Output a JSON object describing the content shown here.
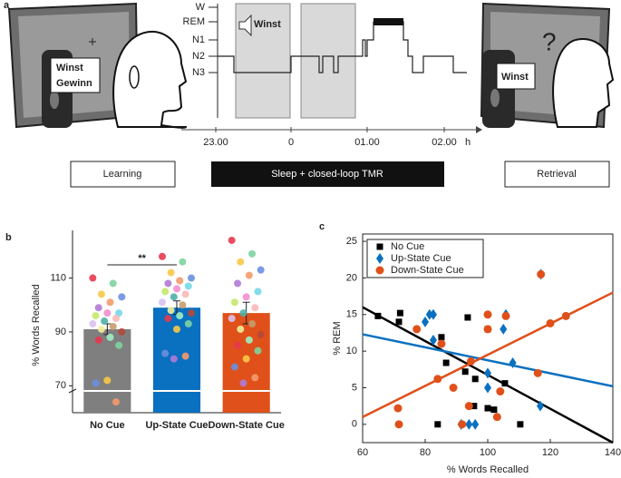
{
  "panel_a": {
    "label": "a",
    "stages": [
      "W",
      "REM",
      "N1",
      "N2",
      "N3"
    ],
    "times": [
      "23.00",
      "0",
      "01.00",
      "02.00"
    ],
    "unit": "h",
    "cue_word": "Winst",
    "learning_words": [
      "Winst",
      "Gewinn"
    ],
    "retrieval_word": "Winst",
    "question": "?",
    "boxes": [
      "Learning",
      "Sleep + closed-loop TMR",
      "Retrieval"
    ]
  },
  "chart_data": [
    {
      "type": "bar",
      "label": "b",
      "ylabel": "% Words Recalled",
      "annotation": "**",
      "categories": [
        "No Cue",
        "Up-State Cue",
        "Down-State Cue"
      ],
      "values": [
        91,
        99,
        97
      ],
      "errors": [
        2,
        2.5,
        4
      ],
      "colors": [
        "#7f7f7f",
        "#0a70c0",
        "#e0501a"
      ],
      "points": [
        [
          110,
          108,
          104,
          103,
          101,
          99,
          97,
          97,
          96,
          95,
          94,
          93,
          92,
          91,
          90,
          88,
          87,
          85,
          72,
          71,
          64
        ],
        [
          118,
          116,
          112,
          110,
          109,
          108,
          107,
          106,
          105,
          104,
          103,
          101,
          100,
          98,
          97,
          96,
          95,
          93,
          91,
          82,
          81,
          80
        ],
        [
          124,
          119,
          116,
          113,
          111,
          108,
          105,
          103,
          101,
          99,
          97,
          95,
          93,
          91,
          89,
          87,
          85,
          83,
          80,
          77,
          73,
          71
        ]
      ],
      "point_colors": [
        "#e8384f",
        "#7ed3a0",
        "#f7c948",
        "#6c8fe0",
        "#f59a6b",
        "#b07ad6",
        "#74d8e8",
        "#f28fd0",
        "#c5e86c",
        "#f9b8b8",
        "#4fb0a8",
        "#d9c2f0",
        "#c69c6d",
        "#f2ee9a",
        "#b5483a",
        "#9ff0c3"
      ],
      "ylim": [
        60,
        125
      ],
      "yticks": [
        70,
        90,
        110
      ]
    },
    {
      "type": "scatter",
      "label": "c",
      "xlabel": "% Words Recalled",
      "ylabel": "% REM",
      "xlim": [
        60,
        140
      ],
      "xticks": [
        60,
        80,
        100,
        120,
        140
      ],
      "ylim": [
        -2.5,
        26
      ],
      "yticks": [
        0,
        5,
        10,
        15,
        20,
        25
      ],
      "series": [
        {
          "name": "No Cue",
          "color": "#000000",
          "marker": "square",
          "x": [
            64.9,
            72,
            71.6,
            85.2,
            86.7,
            93.6,
            92.8,
            96,
            100,
            100,
            84,
            95.6,
            102,
            105.5,
            110.4
          ],
          "y": [
            14.8,
            15.2,
            14,
            11.9,
            8.4,
            14.6,
            7.2,
            6.2,
            13,
            2.2,
            0,
            2.5,
            2,
            5.6,
            0
          ],
          "fit": {
            "x": [
              60,
              140
            ],
            "y": [
              16,
              -2.5
            ]
          }
        },
        {
          "name": "Up-State Cue",
          "color": "#0a70c0",
          "marker": "diamond",
          "x": [
            80,
            81.4,
            82.6,
            82.6,
            91.5,
            94,
            96,
            100,
            100,
            105,
            105.8,
            108,
            116.8,
            117
          ],
          "y": [
            14,
            15,
            15,
            11.5,
            0,
            0,
            0,
            5,
            7,
            13,
            15,
            8.4,
            2.5,
            20.5
          ],
          "fit": {
            "x": [
              60,
              140
            ],
            "y": [
              12.3,
              5.2
            ]
          }
        },
        {
          "name": "Down-State Cue",
          "color": "#e0501a",
          "marker": "circle",
          "x": [
            71.6,
            71.3,
            77.3,
            85.2,
            84,
            89,
            94,
            94.6,
            91.8,
            100,
            100,
            103,
            104,
            105.8,
            116,
            117,
            120,
            125
          ],
          "y": [
            0,
            2.2,
            13,
            11,
            6.2,
            5,
            2.5,
            8.6,
            0,
            15,
            13,
            1,
            4.5,
            14.8,
            7,
            20.5,
            13.8,
            14.8
          ],
          "fit": {
            "x": [
              60,
              140
            ],
            "y": [
              1,
              18
            ]
          }
        }
      ]
    }
  ]
}
